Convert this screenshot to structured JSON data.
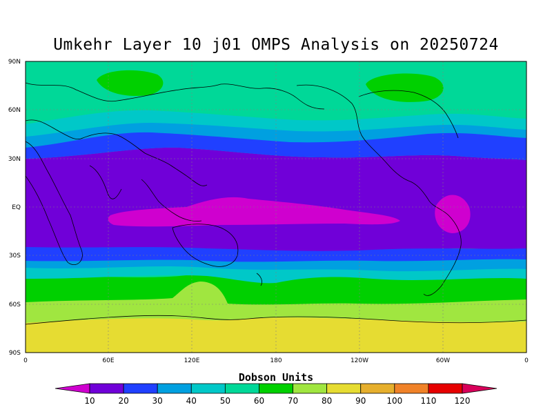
{
  "title": "Umkehr Layer 10 j01 OMPS Analysis on 20250724",
  "map": {
    "lat_labels": [
      "90N",
      "60N",
      "30N",
      "EQ",
      "30S",
      "60S",
      "90S"
    ],
    "lon_labels": [
      "0",
      "60E",
      "120E",
      "180",
      "120W",
      "60W",
      "0"
    ],
    "band_colors": [
      "#cf00cf",
      "#7000d8",
      "#2040ff",
      "#00a0e0",
      "#00c8c8",
      "#00d898",
      "#00d000",
      "#a0e640",
      "#e6dc32",
      "#e6af2d",
      "#f08228",
      "#e60000",
      "#d8005a"
    ]
  },
  "colorbar": {
    "label": "Dobson Units",
    "ticks": [
      "10",
      "20",
      "30",
      "40",
      "50",
      "60",
      "70",
      "80",
      "90",
      "100",
      "110",
      "120"
    ]
  }
}
